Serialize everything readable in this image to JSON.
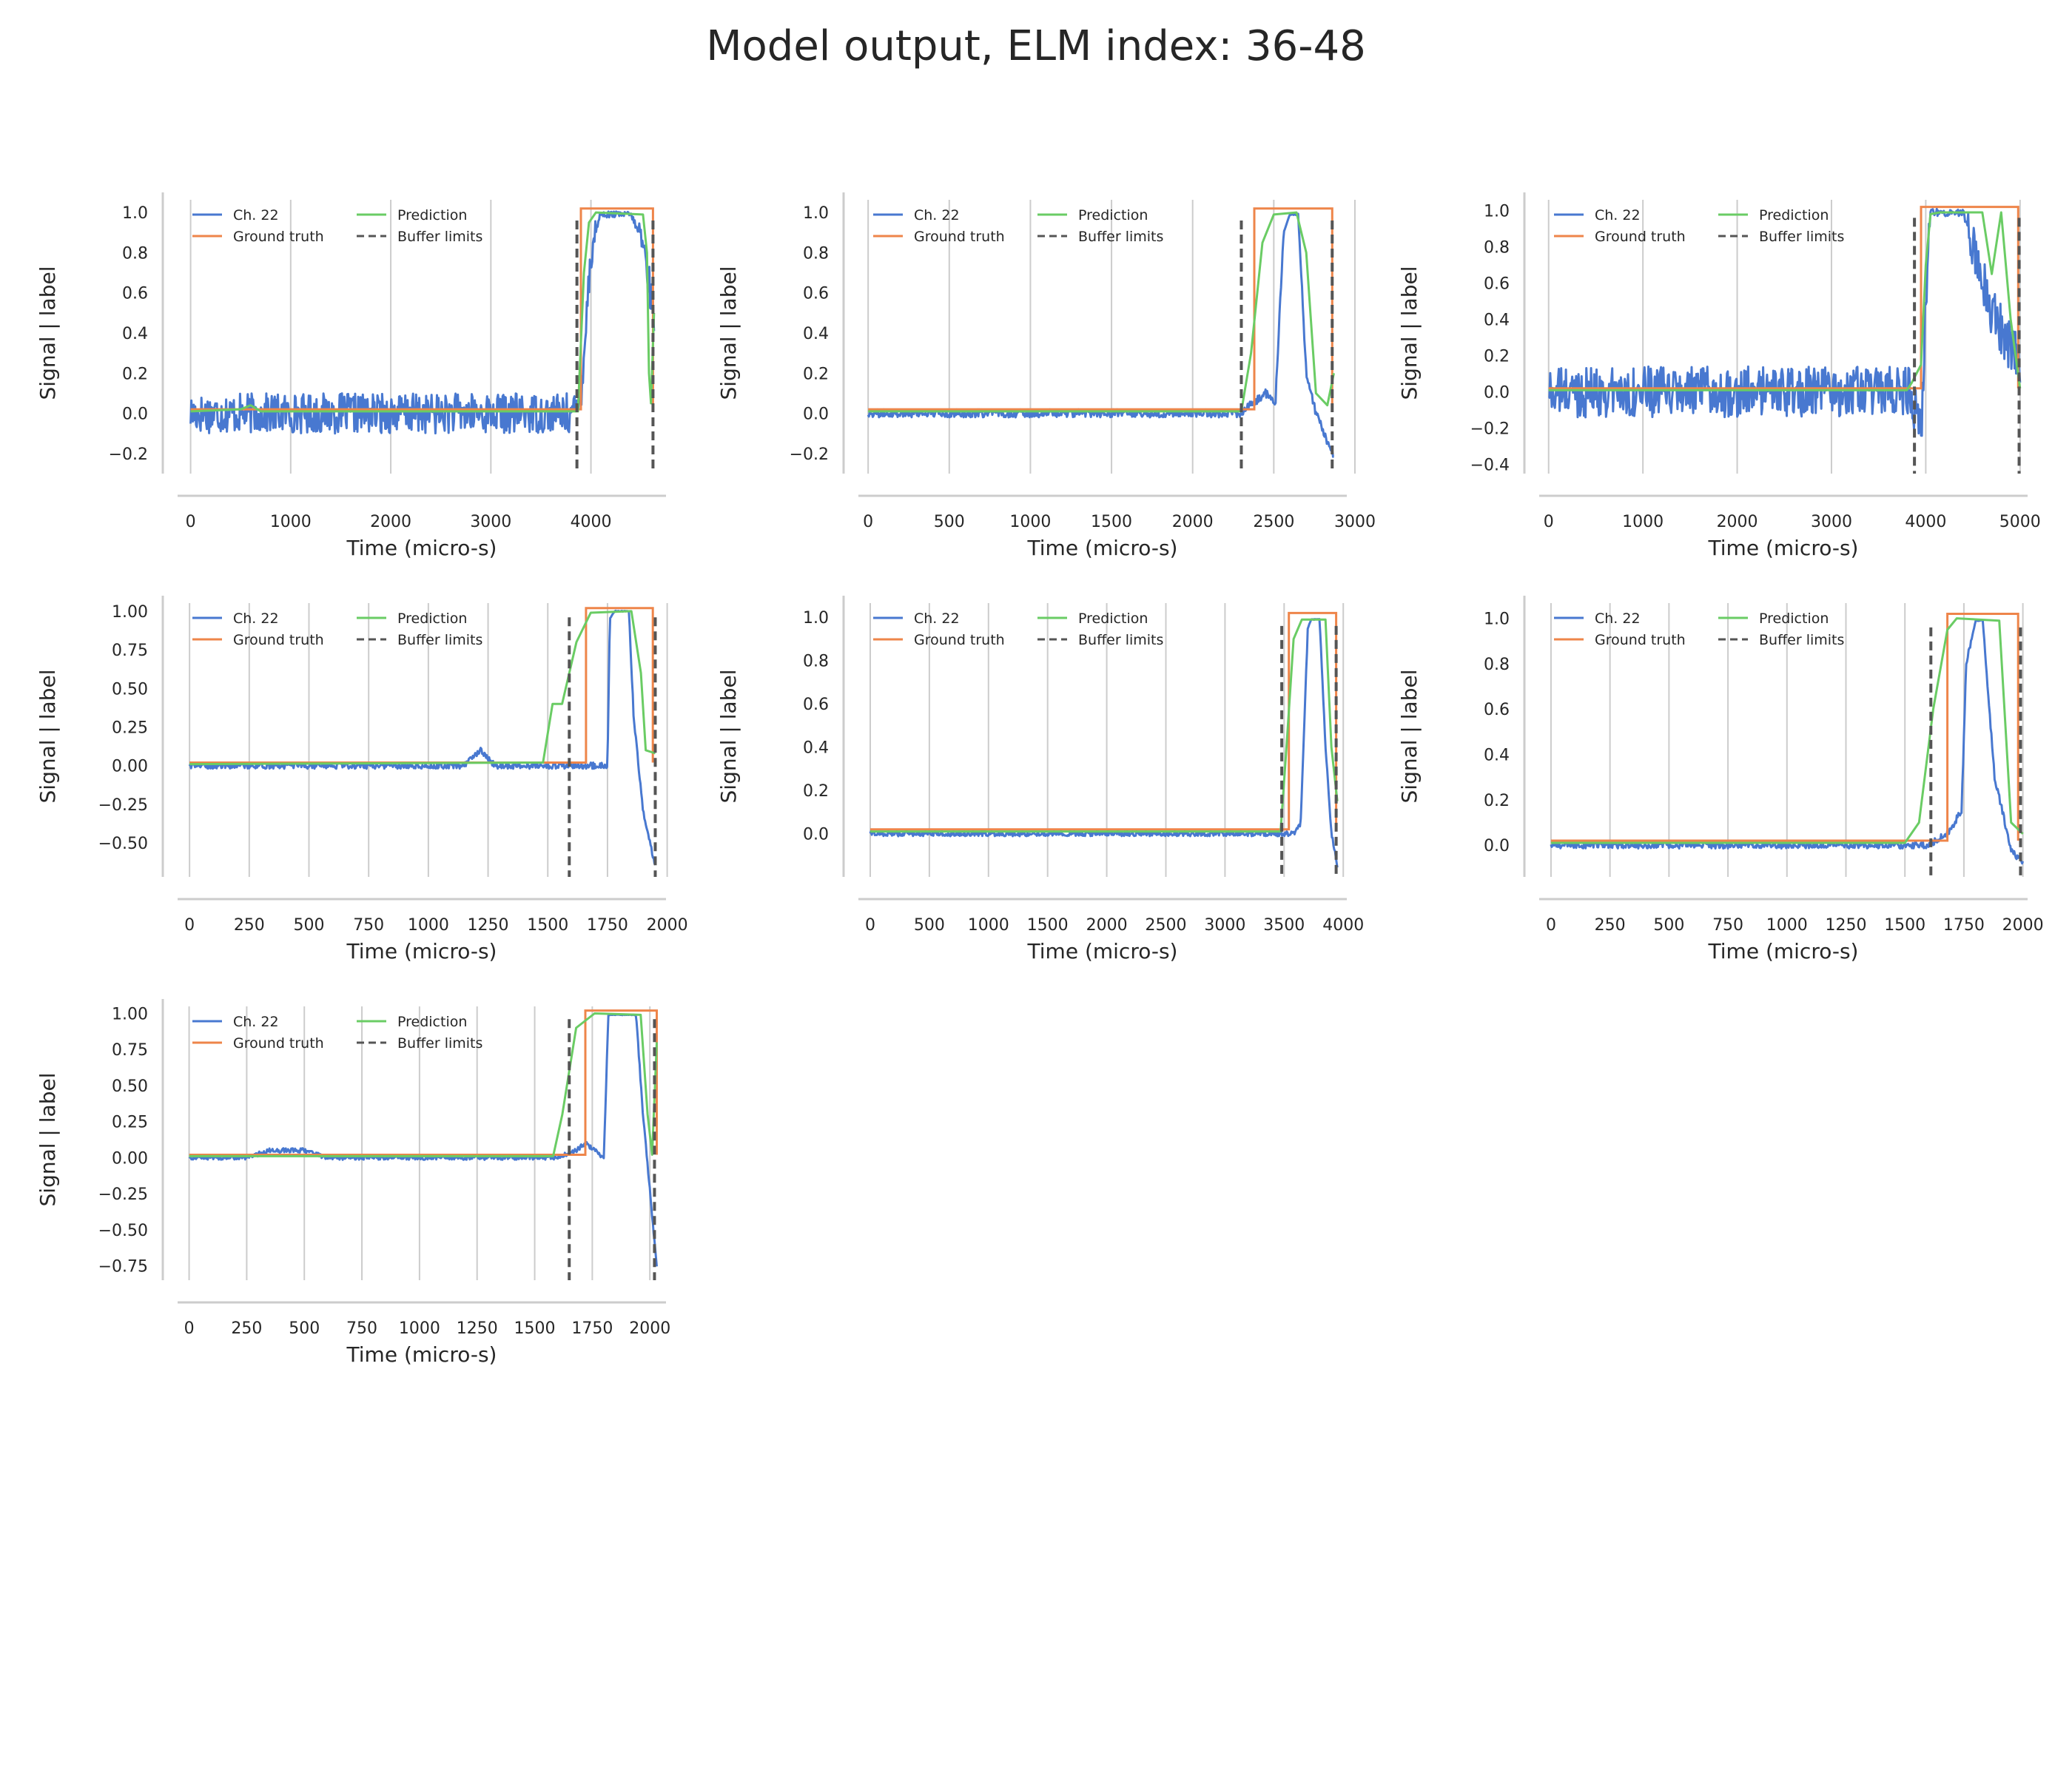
{
  "figure": {
    "title": "Model output, ELM index: 36-48"
  },
  "colors": {
    "signal": "#4878d0",
    "ground_truth": "#ee854a",
    "prediction": "#6acc64",
    "buffer": "#555555",
    "grid": "#cccccc",
    "spine": "#cccccc"
  },
  "chart_data": [
    {
      "type": "line",
      "xlabel": "Time (micro-s)",
      "ylabel": "Signal | label",
      "xlim": [
        -130,
        4750
      ],
      "ylim": [
        -0.3,
        1.1
      ],
      "xticks": [
        0,
        1000,
        2000,
        3000,
        4000
      ],
      "xtick_labels": [
        "0",
        "1000",
        "2000",
        "3000",
        "4000"
      ],
      "yticks": [
        -0.2,
        0.0,
        0.2,
        0.4,
        0.6,
        0.8,
        1.0
      ],
      "ytick_labels": [
        "−0.2",
        "0.0",
        "0.2",
        "0.4",
        "0.6",
        "0.8",
        "1.0"
      ],
      "legend": [
        "Ch. 22",
        "Ground truth",
        "Prediction",
        "Buffer limits"
      ],
      "legend_position": "top-left",
      "grid_x": true,
      "signal": {
        "t_end": 4630,
        "segments": [
          [
            0,
            0.0
          ],
          [
            3850,
            0.0
          ],
          [
            3900,
            0.1
          ],
          [
            4000,
            0.8
          ],
          [
            4090,
            0.99
          ],
          [
            4400,
            0.99
          ],
          [
            4520,
            0.85
          ],
          [
            4580,
            0.65
          ],
          [
            4630,
            0.5
          ]
        ],
        "noise": 0.1
      },
      "ground_truth": [
        [
          0,
          0.02
        ],
        [
          3900,
          0.02
        ],
        [
          3900,
          1.02
        ],
        [
          4620,
          1.02
        ],
        [
          4620,
          0.02
        ]
      ],
      "prediction": [
        [
          0,
          0.01
        ],
        [
          500,
          0.02
        ],
        [
          600,
          0.04
        ],
        [
          700,
          0.01
        ],
        [
          3870,
          0.01
        ],
        [
          3930,
          0.7
        ],
        [
          3980,
          0.95
        ],
        [
          4050,
          1.0
        ],
        [
          4520,
          0.99
        ],
        [
          4560,
          0.8
        ],
        [
          4580,
          0.2
        ],
        [
          4600,
          0.05
        ],
        [
          4630,
          0.5
        ]
      ],
      "buffer_limits": [
        3860,
        4620
      ]
    },
    {
      "type": "line",
      "xlabel": "Time (micro-s)",
      "ylabel": "Signal | label",
      "xlim": [
        -60,
        2950
      ],
      "ylim": [
        -0.3,
        1.1
      ],
      "xticks": [
        0,
        500,
        1000,
        1500,
        2000,
        2500,
        3000
      ],
      "xtick_labels": [
        "0",
        "500",
        "1000",
        "1500",
        "2000",
        "2500",
        "3000"
      ],
      "yticks": [
        -0.2,
        0.0,
        0.2,
        0.4,
        0.6,
        0.8,
        1.0
      ],
      "ytick_labels": [
        "−0.2",
        "0.0",
        "0.2",
        "0.4",
        "0.6",
        "0.8",
        "1.0"
      ],
      "legend": [
        "Ch. 22",
        "Ground truth",
        "Prediction",
        "Buffer limits"
      ],
      "legend_position": "top-left",
      "grid_x": true,
      "signal": {
        "t_end": 2870,
        "segments": [
          [
            0,
            0.0
          ],
          [
            2300,
            0.0
          ],
          [
            2370,
            0.05
          ],
          [
            2450,
            0.1
          ],
          [
            2510,
            0.05
          ],
          [
            2560,
            0.9
          ],
          [
            2600,
            0.99
          ],
          [
            2650,
            0.99
          ],
          [
            2700,
            0.2
          ],
          [
            2760,
            0.0
          ],
          [
            2870,
            -0.22
          ]
        ],
        "noise": 0.02
      },
      "ground_truth": [
        [
          0,
          0.02
        ],
        [
          2380,
          0.02
        ],
        [
          2380,
          1.02
        ],
        [
          2860,
          1.02
        ],
        [
          2860,
          0.02
        ]
      ],
      "prediction": [
        [
          0,
          0.01
        ],
        [
          2300,
          0.01
        ],
        [
          2360,
          0.3
        ],
        [
          2430,
          0.85
        ],
        [
          2500,
          0.99
        ],
        [
          2640,
          1.0
        ],
        [
          2700,
          0.8
        ],
        [
          2760,
          0.1
        ],
        [
          2830,
          0.04
        ],
        [
          2870,
          0.2
        ]
      ],
      "buffer_limits": [
        2300,
        2860
      ]
    },
    {
      "type": "line",
      "xlabel": "Time (micro-s)",
      "ylabel": "Signal | label",
      "xlim": [
        -100,
        5080
      ],
      "ylim": [
        -0.45,
        1.1
      ],
      "xticks": [
        0,
        1000,
        2000,
        3000,
        4000,
        5000
      ],
      "xtick_labels": [
        "0",
        "1000",
        "2000",
        "3000",
        "4000",
        "5000"
      ],
      "yticks": [
        -0.4,
        -0.2,
        0.0,
        0.2,
        0.4,
        0.6,
        0.8,
        1.0
      ],
      "ytick_labels": [
        "−0.4",
        "−0.2",
        "0.0",
        "0.2",
        "0.4",
        "0.6",
        "0.8",
        "1.0"
      ],
      "legend": [
        "Ch. 22",
        "Ground truth",
        "Prediction",
        "Buffer limits"
      ],
      "legend_position": "top-left",
      "grid_x": true,
      "signal": {
        "t_end": 5000,
        "segments": [
          [
            0,
            0.0
          ],
          [
            3850,
            0.0
          ],
          [
            3950,
            -0.25
          ],
          [
            4000,
            0.5
          ],
          [
            4050,
            0.99
          ],
          [
            4400,
            0.99
          ],
          [
            4550,
            0.7
          ],
          [
            4700,
            0.45
          ],
          [
            5000,
            0.15
          ]
        ],
        "noise": 0.14
      },
      "ground_truth": [
        [
          0,
          0.02
        ],
        [
          3950,
          0.02
        ],
        [
          3950,
          1.02
        ],
        [
          4980,
          1.02
        ],
        [
          4980,
          0.02
        ]
      ],
      "prediction": [
        [
          0,
          0.01
        ],
        [
          3800,
          0.01
        ],
        [
          3850,
          0.05
        ],
        [
          3950,
          0.15
        ],
        [
          4000,
          0.7
        ],
        [
          4050,
          0.98
        ],
        [
          4150,
          0.99
        ],
        [
          4600,
          0.99
        ],
        [
          4700,
          0.65
        ],
        [
          4800,
          0.99
        ],
        [
          4900,
          0.4
        ],
        [
          5000,
          0.02
        ]
      ],
      "buffer_limits": [
        3880,
        4990
      ]
    },
    {
      "type": "line",
      "xlabel": "Time (micro-s)",
      "ylabel": "Signal | label",
      "xlim": [
        -50,
        1995
      ],
      "ylim": [
        -0.72,
        1.1
      ],
      "xticks": [
        0,
        250,
        500,
        750,
        1000,
        1250,
        1500,
        1750,
        2000
      ],
      "xtick_labels": [
        "0",
        "250",
        "500",
        "750",
        "1000",
        "1250",
        "1500",
        "1750",
        "2000"
      ],
      "yticks": [
        -0.5,
        -0.25,
        0.0,
        0.25,
        0.5,
        0.75,
        1.0
      ],
      "ytick_labels": [
        "−0.50",
        "−0.25",
        "0.00",
        "0.25",
        "0.50",
        "0.75",
        "1.00"
      ],
      "legend": [
        "Ch. 22",
        "Ground truth",
        "Prediction",
        "Buffer limits"
      ],
      "legend_position": "top-left",
      "grid_x": true,
      "signal": {
        "t_end": 1950,
        "segments": [
          [
            0,
            0.0
          ],
          [
            1150,
            0.0
          ],
          [
            1220,
            0.1
          ],
          [
            1280,
            0.0
          ],
          [
            1750,
            0.0
          ],
          [
            1760,
            0.95
          ],
          [
            1780,
            1.0
          ],
          [
            1840,
            1.0
          ],
          [
            1860,
            0.3
          ],
          [
            1900,
            -0.3
          ],
          [
            1950,
            -0.65
          ]
        ],
        "noise": 0.02
      },
      "ground_truth": [
        [
          0,
          0.02
        ],
        [
          1660,
          0.02
        ],
        [
          1660,
          1.02
        ],
        [
          1940,
          1.02
        ],
        [
          1940,
          0.02
        ]
      ],
      "prediction": [
        [
          0,
          0.01
        ],
        [
          1480,
          0.02
        ],
        [
          1520,
          0.4
        ],
        [
          1560,
          0.4
        ],
        [
          1620,
          0.8
        ],
        [
          1680,
          0.99
        ],
        [
          1850,
          1.0
        ],
        [
          1890,
          0.6
        ],
        [
          1910,
          0.1
        ],
        [
          1950,
          0.08
        ]
      ],
      "buffer_limits": [
        1590,
        1950
      ]
    },
    {
      "type": "line",
      "xlabel": "Time (micro-s)",
      "ylabel": "Signal | label",
      "xlim": [
        -100,
        4030
      ],
      "ylim": [
        -0.2,
        1.1
      ],
      "xticks": [
        0,
        500,
        1000,
        1500,
        2000,
        2500,
        3000,
        3500,
        4000
      ],
      "xtick_labels": [
        "0",
        "500",
        "1000",
        "1500",
        "2000",
        "2500",
        "3000",
        "3500",
        "4000"
      ],
      "yticks": [
        0.0,
        0.2,
        0.4,
        0.6,
        0.8,
        1.0
      ],
      "ytick_labels": [
        "0.0",
        "0.2",
        "0.4",
        "0.6",
        "0.8",
        "1.0"
      ],
      "legend": [
        "Ch. 22",
        "Ground truth",
        "Prediction",
        "Buffer limits"
      ],
      "legend_position": "top-left",
      "grid_x": true,
      "signal": {
        "t_end": 3950,
        "segments": [
          [
            0,
            0.0
          ],
          [
            3580,
            0.0
          ],
          [
            3640,
            0.05
          ],
          [
            3700,
            0.95
          ],
          [
            3730,
            0.99
          ],
          [
            3800,
            0.99
          ],
          [
            3850,
            0.4
          ],
          [
            3900,
            0.0
          ],
          [
            3950,
            -0.15
          ]
        ],
        "noise": 0.012
      },
      "ground_truth": [
        [
          0,
          0.02
        ],
        [
          3540,
          0.02
        ],
        [
          3540,
          1.02
        ],
        [
          3940,
          1.02
        ],
        [
          3940,
          0.02
        ]
      ],
      "prediction": [
        [
          0,
          0.01
        ],
        [
          3470,
          0.01
        ],
        [
          3520,
          0.4
        ],
        [
          3580,
          0.9
        ],
        [
          3650,
          0.99
        ],
        [
          3850,
          0.99
        ],
        [
          3900,
          0.4
        ],
        [
          3950,
          0.15
        ]
      ],
      "buffer_limits": [
        3480,
        3940
      ]
    },
    {
      "type": "line",
      "xlabel": "Time (micro-s)",
      "ylabel": "Signal | label",
      "xlim": [
        -50,
        2020
      ],
      "ylim": [
        -0.14,
        1.1
      ],
      "xticks": [
        0,
        250,
        500,
        750,
        1000,
        1250,
        1500,
        1750,
        2000
      ],
      "xtick_labels": [
        "0",
        "250",
        "500",
        "750",
        "1000",
        "1250",
        "1500",
        "1750",
        "2000"
      ],
      "yticks": [
        0.0,
        0.2,
        0.4,
        0.6,
        0.8,
        1.0
      ],
      "ytick_labels": [
        "0.0",
        "0.2",
        "0.4",
        "0.6",
        "0.8",
        "1.0"
      ],
      "legend": [
        "Ch. 22",
        "Ground truth",
        "Prediction",
        "Buffer limits"
      ],
      "legend_position": "top-left",
      "grid_x": true,
      "signal": {
        "t_end": 2000,
        "segments": [
          [
            0,
            0.0
          ],
          [
            1600,
            0.0
          ],
          [
            1680,
            0.05
          ],
          [
            1740,
            0.15
          ],
          [
            1760,
            0.8
          ],
          [
            1800,
            0.99
          ],
          [
            1830,
            0.99
          ],
          [
            1880,
            0.3
          ],
          [
            1950,
            -0.02
          ],
          [
            2000,
            -0.08
          ]
        ],
        "noise": 0.015
      },
      "ground_truth": [
        [
          0,
          0.02
        ],
        [
          1680,
          0.02
        ],
        [
          1680,
          1.02
        ],
        [
          1980,
          1.02
        ],
        [
          1980,
          0.02
        ]
      ],
      "prediction": [
        [
          0,
          0.01
        ],
        [
          1500,
          0.01
        ],
        [
          1560,
          0.1
        ],
        [
          1620,
          0.6
        ],
        [
          1680,
          0.95
        ],
        [
          1720,
          1.0
        ],
        [
          1900,
          0.99
        ],
        [
          1950,
          0.1
        ],
        [
          2000,
          0.05
        ]
      ],
      "buffer_limits": [
        1610,
        1990
      ]
    },
    {
      "type": "line",
      "xlabel": "Time (micro-s)",
      "ylabel": "Signal | label",
      "xlim": [
        -50,
        2070
      ],
      "ylim": [
        -0.85,
        1.1
      ],
      "xticks": [
        0,
        250,
        500,
        750,
        1000,
        1250,
        1500,
        1750,
        2000
      ],
      "xtick_labels": [
        "0",
        "250",
        "500",
        "750",
        "1000",
        "1250",
        "1500",
        "1750",
        "2000"
      ],
      "yticks": [
        -0.75,
        -0.5,
        -0.25,
        0.0,
        0.25,
        0.5,
        0.75,
        1.0
      ],
      "ytick_labels": [
        "−0.75",
        "−0.50",
        "−0.25",
        "0.00",
        "0.25",
        "0.50",
        "0.75",
        "1.00"
      ],
      "legend": [
        "Ch. 22",
        "Ground truth",
        "Prediction",
        "Buffer limits"
      ],
      "legend_position": "top-left",
      "grid_x": true,
      "signal": {
        "t_end": 2030,
        "segments": [
          [
            0,
            0.0
          ],
          [
            250,
            0.0
          ],
          [
            350,
            0.05
          ],
          [
            500,
            0.05
          ],
          [
            600,
            0.0
          ],
          [
            1600,
            0.0
          ],
          [
            1680,
            0.05
          ],
          [
            1720,
            0.1
          ],
          [
            1760,
            0.05
          ],
          [
            1800,
            0.0
          ],
          [
            1820,
            0.99
          ],
          [
            1940,
            0.99
          ],
          [
            1970,
            0.3
          ],
          [
            2030,
            -0.75
          ]
        ],
        "noise": 0.015
      },
      "ground_truth": [
        [
          0,
          0.02
        ],
        [
          1720,
          0.02
        ],
        [
          1720,
          1.02
        ],
        [
          2030,
          1.02
        ],
        [
          2030,
          0.02
        ]
      ],
      "prediction": [
        [
          0,
          0.01
        ],
        [
          1580,
          0.01
        ],
        [
          1620,
          0.3
        ],
        [
          1680,
          0.9
        ],
        [
          1760,
          1.0
        ],
        [
          1960,
          0.99
        ],
        [
          1990,
          0.3
        ],
        [
          2010,
          0.02
        ],
        [
          2030,
          0.8
        ]
      ],
      "buffer_limits": [
        1650,
        2020
      ]
    }
  ]
}
